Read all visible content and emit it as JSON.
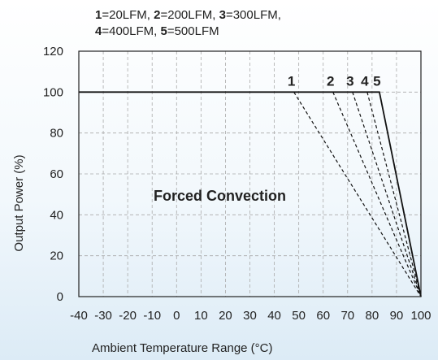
{
  "chart_data": {
    "type": "line",
    "legend": [
      {
        "num": "1",
        "text": "=20LFM, "
      },
      {
        "num": "2",
        "text": "=200LFM, "
      },
      {
        "num": "3",
        "text": "=300LFM,"
      },
      {
        "num": "4",
        "text": "=400LFM, "
      },
      {
        "num": "5",
        "text": "=500LFM"
      }
    ],
    "xlabel": "Ambient Temperature Range (°C)",
    "ylabel": "Output Power (%)",
    "xlim": [
      -40,
      100
    ],
    "ylim": [
      0,
      120
    ],
    "xticks": [
      "-40",
      "-30",
      "-20",
      "-10",
      "0",
      "10",
      "20",
      "30",
      "40",
      "50",
      "60",
      "70",
      "80",
      "90",
      "100"
    ],
    "yticks": [
      "0",
      "20",
      "40",
      "60",
      "80",
      "100",
      "120"
    ],
    "grid": true,
    "annotation": "Forced Convection",
    "series": [
      {
        "name": "1",
        "x": [
          48,
          100
        ],
        "y": [
          100,
          0
        ],
        "style": "dashed"
      },
      {
        "name": "2",
        "x": [
          64,
          100
        ],
        "y": [
          100,
          0
        ],
        "style": "dashed"
      },
      {
        "name": "3",
        "x": [
          72,
          100
        ],
        "y": [
          100,
          0
        ],
        "style": "dashed"
      },
      {
        "name": "4",
        "x": [
          78,
          100
        ],
        "y": [
          100,
          0
        ],
        "style": "dashed"
      },
      {
        "name": "5",
        "x": [
          -40,
          83,
          100
        ],
        "y": [
          100,
          100,
          0
        ],
        "style": "solid"
      }
    ]
  }
}
